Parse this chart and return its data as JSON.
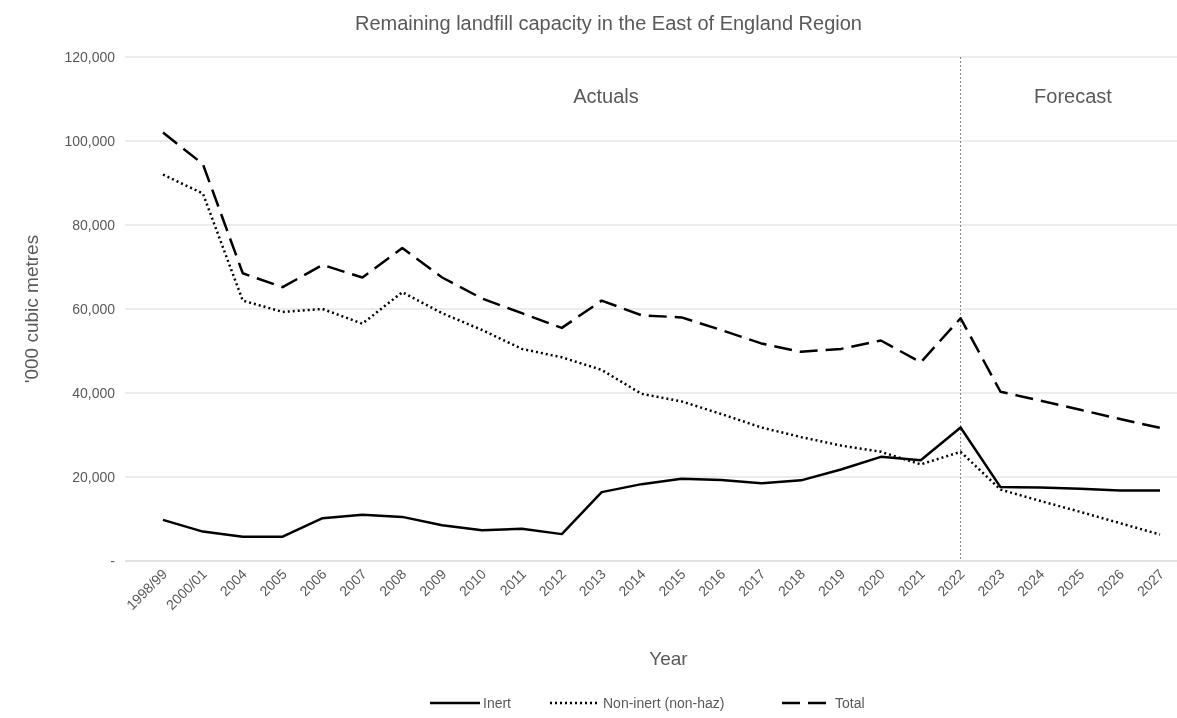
{
  "chart_data": {
    "type": "line",
    "title": "Remaining landfill capacity in the East of England Region",
    "xlabel": "Year",
    "ylabel": "'000 cubic metres",
    "categories": [
      "1998/99",
      "2000/01",
      "2004",
      "2005",
      "2006",
      "2007",
      "2008",
      "2009",
      "2010",
      "2011",
      "2012",
      "2013",
      "2014",
      "2015",
      "2016",
      "2017",
      "2018",
      "2019",
      "2020",
      "2021",
      "2022",
      "2023",
      "2024",
      "2025",
      "2026",
      "2027"
    ],
    "series": [
      {
        "name": "Inert",
        "color": "#000000",
        "line_style": "solid",
        "values": [
          9800,
          7000,
          5800,
          5800,
          10200,
          11000,
          10500,
          8500,
          7300,
          7700,
          6400,
          16400,
          18300,
          19600,
          19300,
          18500,
          19200,
          21800,
          24800,
          24000,
          31800,
          17600,
          17500,
          17200,
          16800,
          16800
        ]
      },
      {
        "name": "Non-inert (non-haz)",
        "color": "#000000",
        "line_style": "dotted",
        "values": [
          92000,
          87500,
          62000,
          59300,
          60000,
          56500,
          64000,
          59000,
          55000,
          50500,
          48500,
          45500,
          39800,
          38000,
          35000,
          31800,
          29500,
          27500,
          26000,
          23000,
          26000,
          17000,
          14300,
          11700,
          9000,
          6300
        ]
      },
      {
        "name": "Total",
        "color": "#000000",
        "line_style": "dashed",
        "values": [
          102000,
          94500,
          68500,
          65200,
          70500,
          67500,
          74500,
          67500,
          62500,
          59000,
          55500,
          62000,
          58500,
          58000,
          55000,
          51800,
          49800,
          50500,
          52500,
          47300,
          57800,
          40300,
          38200,
          36000,
          33800,
          31700
        ]
      }
    ],
    "ylim": [
      0,
      120000
    ],
    "yticks": [
      {
        "value": 0,
        "label": "-"
      },
      {
        "value": 20000,
        "label": "20,000"
      },
      {
        "value": 40000,
        "label": "40,000"
      },
      {
        "value": 60000,
        "label": "60,000"
      },
      {
        "value": 80000,
        "label": "80,000"
      },
      {
        "value": 100000,
        "label": "100,000"
      },
      {
        "value": 120000,
        "label": "120,000"
      }
    ],
    "grid": "y",
    "legend": "bottom",
    "ref_lines": [
      {
        "axis": "x",
        "value": "2022",
        "color": "#808080",
        "line_style": "dotted"
      }
    ],
    "annotations": [
      "Actuals",
      "Forecast"
    ]
  }
}
